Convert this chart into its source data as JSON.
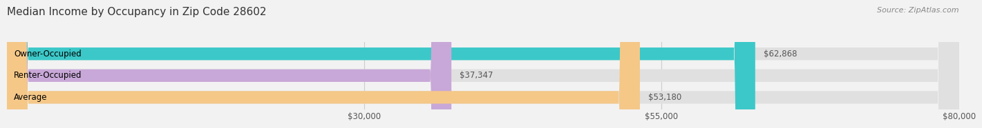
{
  "title": "Median Income by Occupancy in Zip Code 28602",
  "source": "Source: ZipAtlas.com",
  "categories": [
    "Owner-Occupied",
    "Renter-Occupied",
    "Average"
  ],
  "values": [
    62868,
    37347,
    53180
  ],
  "bar_colors": [
    "#3cc8c8",
    "#c8a8d8",
    "#f5c888"
  ],
  "bar_labels": [
    "$62,868",
    "$37,347",
    "$53,180"
  ],
  "xlim": [
    0,
    80000
  ],
  "xticks": [
    30000,
    55000,
    80000
  ],
  "xticklabels": [
    "$30,000",
    "$55,000",
    "$80,000"
  ],
  "background_color": "#f2f2f2",
  "bar_background_color": "#e0e0e0",
  "bar_height": 0.58,
  "title_fontsize": 11,
  "label_fontsize": 8.5,
  "value_fontsize": 8.5,
  "source_fontsize": 8
}
